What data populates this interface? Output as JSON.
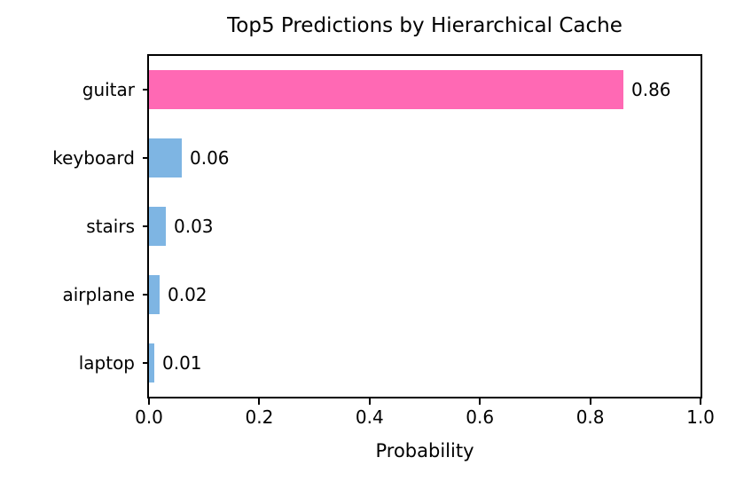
{
  "chart_data": {
    "type": "bar",
    "orientation": "horizontal",
    "title": "Top5 Predictions by Hierarchical Cache",
    "xlabel": "Probability",
    "ylabel": "",
    "categories": [
      "guitar",
      "keyboard",
      "stairs",
      "airplane",
      "laptop"
    ],
    "values": [
      0.86,
      0.06,
      0.03,
      0.02,
      0.01
    ],
    "value_labels": [
      "0.86",
      "0.06",
      "0.03",
      "0.02",
      "0.01"
    ],
    "bar_colors": [
      "#FF69B4",
      "#7EB5E3",
      "#7EB5E3",
      "#7EB5E3",
      "#7EB5E3"
    ],
    "highlight_color": "#FF69B4",
    "default_bar_color": "#7EB5E3",
    "xlim": [
      0.0,
      1.0
    ],
    "xticks": [
      0.0,
      0.2,
      0.4,
      0.6,
      0.8,
      1.0
    ],
    "xtick_labels": [
      "0.0",
      "0.2",
      "0.4",
      "0.6",
      "0.8",
      "1.0"
    ],
    "grid": false,
    "legend": null,
    "axis_color": "#000000",
    "text_color": "#000000",
    "background_color": "#FFFFFF"
  }
}
